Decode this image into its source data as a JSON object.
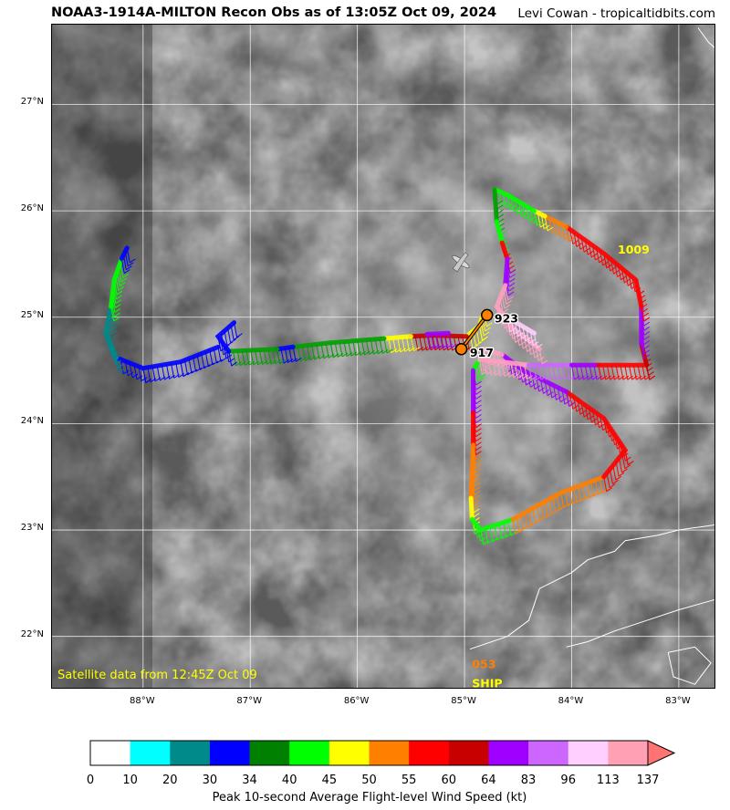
{
  "header": {
    "title": "NOAA3-1914A-MILTON Recon Obs as of 13:05Z Oct 09, 2024",
    "credit": "Levi Cowan - tropicaltidbits.com"
  },
  "map": {
    "lon_range": [
      -88.85,
      -82.65
    ],
    "lat_range": [
      21.5,
      27.75
    ],
    "lon_ticks": [
      {
        "value": -88,
        "label": "88°W"
      },
      {
        "value": -87,
        "label": "87°W"
      },
      {
        "value": -86,
        "label": "86°W"
      },
      {
        "value": -85,
        "label": "85°W"
      },
      {
        "value": -84,
        "label": "84°W"
      },
      {
        "value": -83,
        "label": "83°W"
      }
    ],
    "lat_ticks": [
      {
        "value": 22,
        "label": "22°N"
      },
      {
        "value": 23,
        "label": "23°N"
      },
      {
        "value": 24,
        "label": "24°N"
      },
      {
        "value": 25,
        "label": "25°N"
      },
      {
        "value": 26,
        "label": "26°N"
      },
      {
        "value": 27,
        "label": "27°N"
      }
    ],
    "satellite_note": "Satellite data from 12:45Z Oct 09",
    "background": "grayscale infrared satellite imagery",
    "pressure_labels": [
      {
        "text": "923",
        "lon": -84.72,
        "lat": 24.95,
        "color": "#000000"
      },
      {
        "text": "917",
        "lon": -84.95,
        "lat": 24.63,
        "color": "#000000"
      },
      {
        "text": "1009",
        "lon": -83.57,
        "lat": 25.6,
        "color": "#ffff00"
      },
      {
        "text": "053",
        "lon": -84.93,
        "lat": 21.7,
        "color": "#ff8000"
      },
      {
        "text": "SHIP",
        "lon": -84.93,
        "lat": 21.52,
        "color": "#ffff00"
      }
    ],
    "center_track": [
      {
        "lon": -84.79,
        "lat": 25.02
      },
      {
        "lon": -85.03,
        "lat": 24.7
      }
    ],
    "flight_track_segments": [
      {
        "color": "#ffff00",
        "points": [
          [
            -84.82,
            25.05
          ],
          [
            -84.86,
            24.92
          ],
          [
            -84.98,
            24.82
          ]
        ]
      },
      {
        "color": "#c80000",
        "points": [
          [
            -84.98,
            24.82
          ],
          [
            -85.3,
            24.83
          ],
          [
            -85.5,
            24.82
          ]
        ]
      },
      {
        "color": "#a000ff",
        "points": [
          [
            -85.15,
            24.85
          ],
          [
            -85.35,
            24.84
          ]
        ]
      },
      {
        "color": "#ffff00",
        "points": [
          [
            -85.5,
            24.82
          ],
          [
            -85.75,
            24.8
          ]
        ]
      },
      {
        "color": "#00a000",
        "points": [
          [
            -85.75,
            24.8
          ],
          [
            -86.25,
            24.76
          ],
          [
            -86.6,
            24.72
          ]
        ]
      },
      {
        "color": "#0000ff",
        "points": [
          [
            -86.6,
            24.72
          ],
          [
            -86.75,
            24.7
          ]
        ]
      },
      {
        "color": "#00a000",
        "points": [
          [
            -86.75,
            24.7
          ],
          [
            -87.2,
            24.68
          ]
        ]
      },
      {
        "color": "#0000ff",
        "points": [
          [
            -87.2,
            24.68
          ],
          [
            -87.3,
            24.82
          ],
          [
            -87.15,
            24.95
          ]
        ]
      },
      {
        "color": "#0000ff",
        "points": [
          [
            -87.3,
            24.72
          ],
          [
            -87.65,
            24.58
          ],
          [
            -88.0,
            24.52
          ],
          [
            -88.25,
            24.62
          ]
        ]
      },
      {
        "color": "#008a8a",
        "points": [
          [
            -88.25,
            24.62
          ],
          [
            -88.35,
            24.85
          ],
          [
            -88.3,
            25.1
          ]
        ]
      },
      {
        "color": "#00ff00",
        "points": [
          [
            -88.3,
            25.1
          ],
          [
            -88.27,
            25.35
          ],
          [
            -88.2,
            25.55
          ]
        ]
      },
      {
        "color": "#0000ff",
        "points": [
          [
            -88.2,
            25.55
          ],
          [
            -88.15,
            25.65
          ]
        ]
      },
      {
        "color": "#00ff00",
        "points": [
          [
            -84.86,
            24.6
          ],
          [
            -84.92,
            24.5
          ]
        ]
      },
      {
        "color": "#a000ff",
        "points": [
          [
            -84.92,
            24.5
          ],
          [
            -84.92,
            24.1
          ]
        ]
      },
      {
        "color": "#ff0000",
        "points": [
          [
            -84.92,
            24.1
          ],
          [
            -84.92,
            23.8
          ]
        ]
      },
      {
        "color": "#ff8000",
        "points": [
          [
            -84.92,
            23.8
          ],
          [
            -84.94,
            23.3
          ]
        ]
      },
      {
        "color": "#ffff00",
        "points": [
          [
            -84.94,
            23.3
          ],
          [
            -84.93,
            23.1
          ]
        ]
      },
      {
        "color": "#00ff00",
        "points": [
          [
            -84.93,
            23.1
          ],
          [
            -84.85,
            23.0
          ],
          [
            -84.55,
            23.1
          ]
        ]
      },
      {
        "color": "#ff8000",
        "points": [
          [
            -84.55,
            23.1
          ],
          [
            -84.1,
            23.35
          ],
          [
            -83.7,
            23.5
          ]
        ]
      },
      {
        "color": "#ff0000",
        "points": [
          [
            -83.7,
            23.5
          ],
          [
            -83.5,
            23.75
          ],
          [
            -83.7,
            24.05
          ],
          [
            -84.05,
            24.3
          ]
        ]
      },
      {
        "color": "#a000ff",
        "points": [
          [
            -84.05,
            24.3
          ],
          [
            -84.45,
            24.5
          ],
          [
            -84.65,
            24.65
          ]
        ]
      },
      {
        "color": "#ffa0c0",
        "points": [
          [
            -84.65,
            24.65
          ],
          [
            -84.82,
            24.7
          ],
          [
            -84.86,
            24.6
          ]
        ]
      },
      {
        "color": "#ffa0c0",
        "points": [
          [
            -84.82,
            24.6
          ],
          [
            -84.4,
            24.55
          ]
        ]
      },
      {
        "color": "#cc66ff",
        "points": [
          [
            -84.4,
            24.55
          ],
          [
            -84.0,
            24.55
          ]
        ]
      },
      {
        "color": "#a000ff",
        "points": [
          [
            -84.0,
            24.55
          ],
          [
            -83.75,
            24.55
          ]
        ]
      },
      {
        "color": "#ff0000",
        "points": [
          [
            -83.75,
            24.55
          ],
          [
            -83.3,
            24.55
          ]
        ]
      },
      {
        "color": "#c80000",
        "points": [
          [
            -83.3,
            24.55
          ],
          [
            -83.35,
            24.75
          ]
        ]
      },
      {
        "color": "#a000ff",
        "points": [
          [
            -83.35,
            24.75
          ],
          [
            -83.35,
            25.1
          ]
        ]
      },
      {
        "color": "#ff0000",
        "points": [
          [
            -83.35,
            25.1
          ],
          [
            -83.4,
            25.35
          ],
          [
            -83.7,
            25.6
          ],
          [
            -84.05,
            25.85
          ]
        ]
      },
      {
        "color": "#ff8000",
        "points": [
          [
            -84.05,
            25.85
          ],
          [
            -84.25,
            25.95
          ]
        ]
      },
      {
        "color": "#ffff00",
        "points": [
          [
            -84.25,
            25.95
          ],
          [
            -84.35,
            26.0
          ]
        ]
      },
      {
        "color": "#00ff00",
        "points": [
          [
            -84.35,
            26.0
          ],
          [
            -84.6,
            26.15
          ],
          [
            -84.72,
            26.2
          ]
        ]
      },
      {
        "color": "#00a000",
        "points": [
          [
            -84.72,
            26.2
          ],
          [
            -84.7,
            25.9
          ]
        ]
      },
      {
        "color": "#00ff00",
        "points": [
          [
            -84.7,
            25.9
          ],
          [
            -84.65,
            25.7
          ]
        ]
      },
      {
        "color": "#ff0000",
        "points": [
          [
            -84.65,
            25.7
          ],
          [
            -84.6,
            25.55
          ]
        ]
      },
      {
        "color": "#a000ff",
        "points": [
          [
            -84.6,
            25.55
          ],
          [
            -84.62,
            25.3
          ]
        ]
      },
      {
        "color": "#ffa0c0",
        "points": [
          [
            -84.62,
            25.3
          ],
          [
            -84.7,
            25.1
          ],
          [
            -84.55,
            24.9
          ],
          [
            -84.3,
            24.7
          ]
        ]
      },
      {
        "color": "#ffd0ff",
        "points": [
          [
            -84.6,
            25.0
          ],
          [
            -84.35,
            24.85
          ]
        ]
      }
    ],
    "coastlines": [
      {
        "name": "cuba-north",
        "points": [
          [
            -84.95,
            21.88
          ],
          [
            -84.6,
            22.0
          ],
          [
            -84.4,
            22.15
          ],
          [
            -84.3,
            22.45
          ],
          [
            -84.0,
            22.6
          ],
          [
            -83.85,
            22.72
          ],
          [
            -83.6,
            22.8
          ],
          [
            -83.5,
            22.9
          ],
          [
            -83.2,
            22.95
          ],
          [
            -83.0,
            23.0
          ],
          [
            -82.65,
            23.05
          ]
        ]
      },
      {
        "name": "cuba-south",
        "points": [
          [
            -84.05,
            21.9
          ],
          [
            -83.85,
            21.95
          ],
          [
            -83.6,
            22.05
          ],
          [
            -83.3,
            22.15
          ],
          [
            -83.0,
            22.25
          ],
          [
            -82.65,
            22.35
          ]
        ]
      },
      {
        "name": "isle-of-youth",
        "points": [
          [
            -83.1,
            21.85
          ],
          [
            -82.85,
            21.9
          ],
          [
            -82.7,
            21.75
          ],
          [
            -82.85,
            21.55
          ],
          [
            -83.05,
            21.62
          ],
          [
            -83.1,
            21.85
          ]
        ]
      },
      {
        "name": "florida-keys",
        "points": [
          [
            -82.82,
            27.72
          ],
          [
            -82.72,
            27.58
          ],
          [
            -82.65,
            27.52
          ]
        ]
      }
    ]
  },
  "colorbar": {
    "label": "Peak 10-second Average Flight-level Wind Speed (kt)",
    "colors": [
      "#ffffff",
      "#00ffff",
      "#008a8a",
      "#0000ff",
      "#008000",
      "#00ff00",
      "#ffff00",
      "#ff8000",
      "#ff0000",
      "#c80000",
      "#a000ff",
      "#cc66ff",
      "#ffd0ff",
      "#ffa0b4"
    ],
    "ticks": [
      "0",
      "10",
      "20",
      "30",
      "34",
      "40",
      "45",
      "50",
      "55",
      "60",
      "64",
      "83",
      "96",
      "113",
      "137"
    ],
    "extend_color": "#ff7373"
  }
}
